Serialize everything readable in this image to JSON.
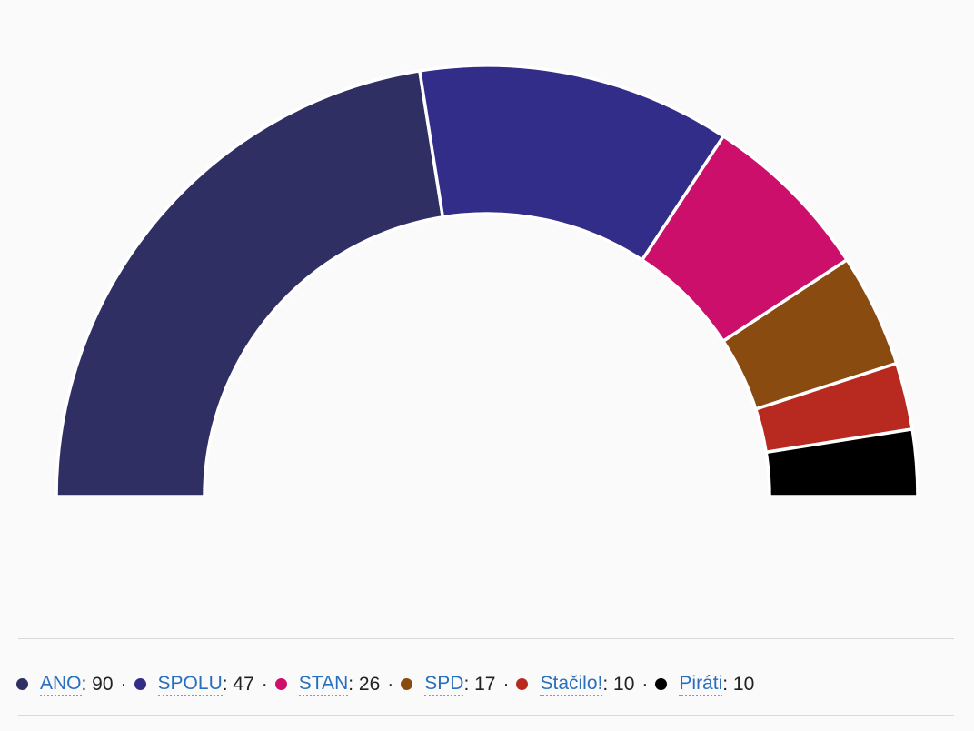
{
  "chart_data": {
    "type": "pie",
    "subtype": "parliament-half-donut",
    "title": "",
    "series": [
      {
        "name": "ANO",
        "value": 90,
        "color": "#302f64"
      },
      {
        "name": "SPOLU",
        "value": 47,
        "color": "#332d8a"
      },
      {
        "name": "STAN",
        "value": 26,
        "color": "#cc0f6a"
      },
      {
        "name": "SPD",
        "value": 17,
        "color": "#8a4b11"
      },
      {
        "name": "Stačilo!",
        "value": 10,
        "color": "#b82a1f"
      },
      {
        "name": "Piráti",
        "value": 10,
        "color": "#000000"
      }
    ],
    "total": 200,
    "legend_position": "bottom",
    "legend_separator": "·"
  }
}
